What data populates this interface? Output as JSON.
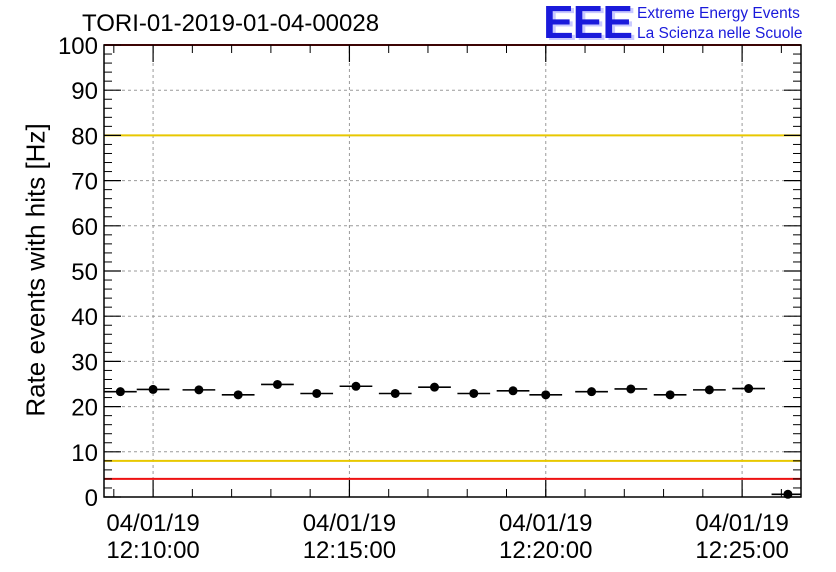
{
  "header": {
    "title": "TORI-01-2019-01-04-00028",
    "logo_mark": "EEE",
    "logo_line1": "Extreme Energy Events",
    "logo_line2": "La Scienza nelle Scuole"
  },
  "chart_data": {
    "type": "scatter",
    "title": "TORI-01-2019-01-04-00028",
    "ylabel": "Rate events with hits [Hz]",
    "xlabel": "",
    "ylim": [
      0,
      100
    ],
    "yticks": [
      0,
      10,
      20,
      30,
      40,
      50,
      60,
      70,
      80,
      90,
      100
    ],
    "xlim": [
      "12:08:45",
      "12:26:30"
    ],
    "xticks": [
      {
        "time": "12:10:00",
        "date": "04/01/19",
        "label_time": "12:10:00"
      },
      {
        "time": "12:15:00",
        "date": "04/01/19",
        "label_time": "12:15:00"
      },
      {
        "time": "12:20:00",
        "date": "04/01/19",
        "label_time": "12:20:00"
      },
      {
        "time": "12:25:00",
        "date": "04/01/19",
        "label_time": "12:25:00"
      }
    ],
    "grid": true,
    "bin_width_seconds": 50,
    "series": [
      {
        "points": [
          {
            "x": "12:09:10",
            "y": 23.3
          },
          {
            "x": "12:10:00",
            "y": 23.8
          },
          {
            "x": "12:11:10",
            "y": 23.7
          },
          {
            "x": "12:12:10",
            "y": 22.6
          },
          {
            "x": "12:13:10",
            "y": 24.9
          },
          {
            "x": "12:14:10",
            "y": 22.9
          },
          {
            "x": "12:15:10",
            "y": 24.5
          },
          {
            "x": "12:16:10",
            "y": 22.9
          },
          {
            "x": "12:17:10",
            "y": 24.3
          },
          {
            "x": "12:18:10",
            "y": 22.9
          },
          {
            "x": "12:19:10",
            "y": 23.5
          },
          {
            "x": "12:20:00",
            "y": 22.6
          },
          {
            "x": "12:21:10",
            "y": 23.3
          },
          {
            "x": "12:22:10",
            "y": 23.9
          },
          {
            "x": "12:23:10",
            "y": 22.6
          },
          {
            "x": "12:24:10",
            "y": 23.7
          },
          {
            "x": "12:25:10",
            "y": 24.0
          },
          {
            "x": "12:26:10",
            "y": 0.6
          }
        ]
      }
    ],
    "reference_lines": [
      {
        "y": 100,
        "color": "#ee1111"
      },
      {
        "y": 80,
        "color": "#e8c800"
      },
      {
        "y": 8,
        "color": "#e8c800"
      },
      {
        "y": 4,
        "color": "#ee1111"
      }
    ]
  }
}
